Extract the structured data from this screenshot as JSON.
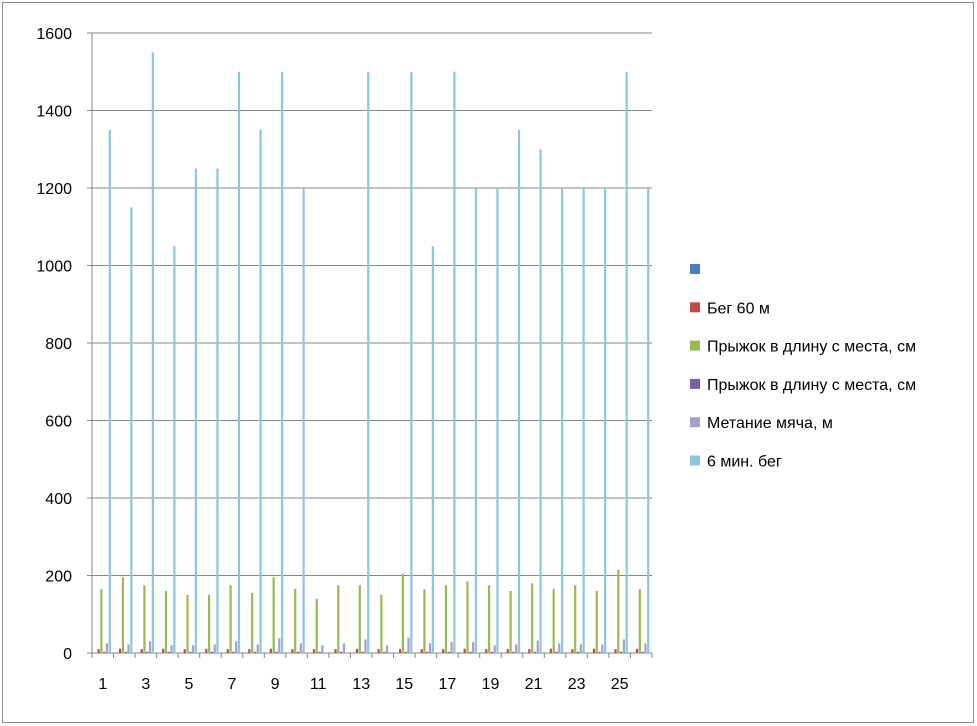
{
  "chart_data": {
    "type": "bar",
    "title": "",
    "xlabel": "",
    "ylabel": "",
    "ylim": [
      0,
      1600
    ],
    "yticks": [
      "0",
      "200",
      "400",
      "600",
      "800",
      "1000",
      "1200",
      "1400",
      "1600"
    ],
    "categories": [
      "1",
      "2",
      "3",
      "4",
      "5",
      "6",
      "7",
      "8",
      "9",
      "10",
      "11",
      "12",
      "13",
      "14",
      "15",
      "16",
      "17",
      "18",
      "19",
      "20",
      "21",
      "22",
      "23",
      "24",
      "25",
      "26"
    ],
    "xtick_labels": [
      "1",
      "",
      "3",
      "",
      "5",
      "",
      "7",
      "",
      "9",
      "",
      "11",
      "",
      "13",
      "",
      "15",
      "",
      "17",
      "",
      "19",
      "",
      "21",
      "",
      "23",
      "",
      "25",
      ""
    ],
    "grid": true,
    "legend_position": "right",
    "series": [
      {
        "name": "",
        "color": "#4a7ebb",
        "values": [
          0,
          0,
          0,
          0,
          0,
          0,
          0,
          0,
          0,
          0,
          0,
          0,
          0,
          0,
          0,
          0,
          0,
          0,
          0,
          0,
          0,
          0,
          0,
          0,
          0,
          0
        ]
      },
      {
        "name": "Бег 60 м",
        "color": "#be4b48",
        "values": [
          10,
          11,
          10,
          11,
          10,
          11,
          10,
          10,
          11,
          10,
          10,
          10,
          11,
          10,
          10,
          10,
          10,
          11,
          10,
          10,
          10,
          11,
          10,
          11,
          10,
          11
        ]
      },
      {
        "name": "Прыжок в длину с места, см",
        "color": "#98b954",
        "values": [
          165,
          195,
          175,
          160,
          150,
          150,
          175,
          155,
          195,
          165,
          140,
          175,
          175,
          150,
          205,
          165,
          175,
          185,
          175,
          160,
          180,
          165,
          175,
          160,
          215,
          165
        ]
      },
      {
        "name": "Прыжок в длину с места, см",
        "color": "#7d5fa0",
        "values": [
          3,
          3,
          3,
          3,
          3,
          3,
          3,
          3,
          3,
          3,
          3,
          3,
          3,
          3,
          3,
          3,
          3,
          3,
          3,
          3,
          3,
          3,
          3,
          3,
          3,
          3
        ]
      },
      {
        "name": "Метание мяча, м",
        "color": "#a4a0c8",
        "values": [
          25,
          22,
          30,
          20,
          20,
          22,
          30,
          22,
          38,
          25,
          20,
          25,
          35,
          20,
          40,
          25,
          28,
          28,
          20,
          22,
          32,
          25,
          22,
          22,
          35,
          25
        ]
      },
      {
        "name": "6 мин. бег",
        "color": "#8cc6dc",
        "values": [
          1350,
          1150,
          1550,
          1050,
          1250,
          1250,
          1500,
          1350,
          1500,
          1200,
          0,
          0,
          1500,
          0,
          1500,
          1050,
          1500,
          1200,
          1200,
          1350,
          1300,
          1200,
          1200,
          1200,
          1500,
          1200
        ]
      }
    ]
  }
}
